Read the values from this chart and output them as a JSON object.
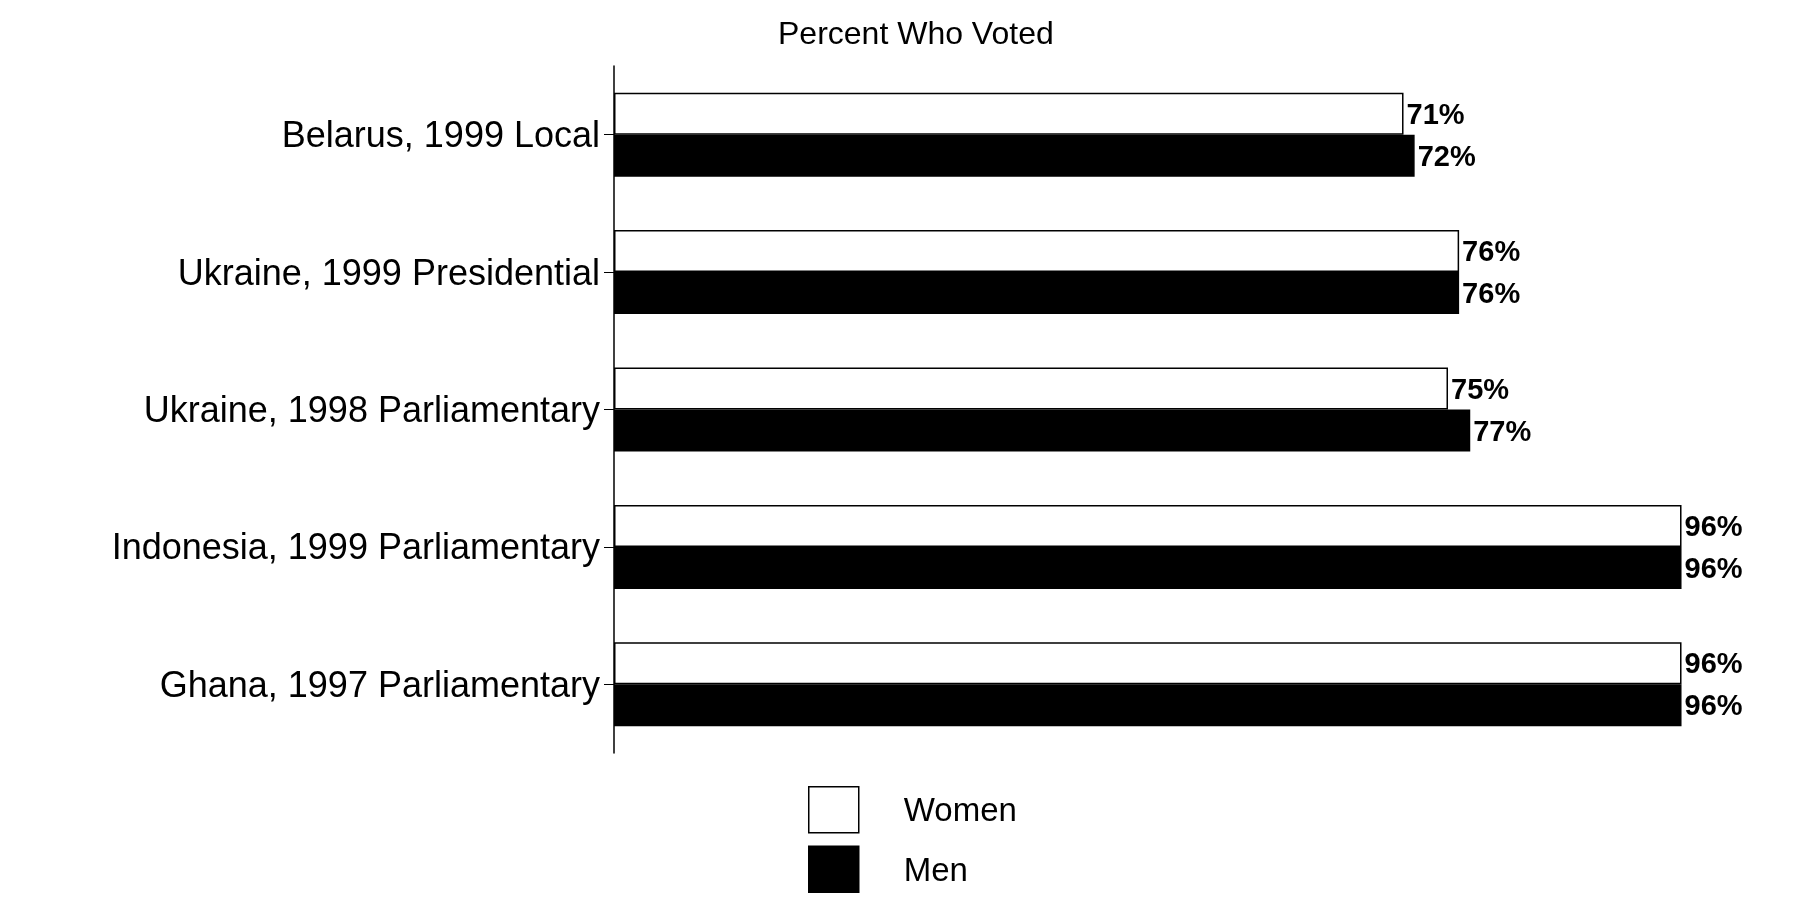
{
  "chart_data": {
    "type": "bar",
    "orientation": "horizontal",
    "title": "Percent Who Voted",
    "categories": [
      "Belarus, 1999 Local",
      "Ukraine, 1999 Presidential",
      "Ukraine, 1998 Parliamentary",
      "Indonesia, 1999 Parliamentary",
      "Ghana, 1997 Parliamentary"
    ],
    "series": [
      {
        "name": "Women",
        "color": "#ffffff",
        "values": [
          71,
          76,
          75,
          96,
          96
        ],
        "value_labels": [
          "71%",
          "76%",
          "75%",
          "96%",
          "96%"
        ]
      },
      {
        "name": "Men",
        "color": "#000000",
        "values": [
          72,
          76,
          77,
          96,
          96
        ],
        "value_labels": [
          "72%",
          "76%",
          "77%",
          "96%",
          "96%"
        ]
      }
    ],
    "legend": "bottom"
  }
}
